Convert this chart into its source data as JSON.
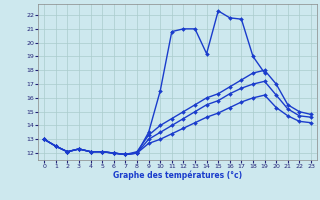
{
  "title": "Graphe des températures (°c)",
  "bg_color": "#cde8ee",
  "grid_color": "#aacccc",
  "line_color": "#1a3ccc",
  "xlim": [
    -0.5,
    23.5
  ],
  "ylim": [
    11.5,
    22.8
  ],
  "yticks": [
    12,
    13,
    14,
    15,
    16,
    17,
    18,
    19,
    20,
    21,
    22
  ],
  "xticks": [
    0,
    1,
    2,
    3,
    4,
    5,
    6,
    7,
    8,
    9,
    10,
    11,
    12,
    13,
    14,
    15,
    16,
    17,
    18,
    19,
    20,
    21,
    22,
    23
  ],
  "lines": [
    {
      "x": [
        0,
        1,
        2,
        3,
        4,
        5,
        6,
        7,
        8,
        9,
        10,
        11,
        12,
        13,
        14,
        15,
        16,
        17,
        18,
        19
      ],
      "y": [
        13.0,
        12.5,
        12.1,
        12.3,
        12.1,
        12.1,
        12.0,
        11.9,
        12.0,
        13.5,
        16.5,
        20.8,
        21.0,
        21.0,
        19.2,
        22.3,
        21.8,
        21.7,
        19.0,
        17.8
      ],
      "marker": "D",
      "markersize": 2.0,
      "linewidth": 1.0
    },
    {
      "x": [
        0,
        1,
        2,
        3,
        4,
        5,
        6,
        7,
        8,
        9,
        10,
        11,
        12,
        13,
        14,
        15,
        16,
        17,
        18,
        19,
        20,
        21,
        22,
        23
      ],
      "y": [
        13.0,
        12.5,
        12.1,
        12.3,
        12.1,
        12.1,
        12.0,
        11.9,
        12.1,
        13.3,
        14.0,
        14.5,
        15.0,
        15.5,
        16.0,
        16.3,
        16.8,
        17.3,
        17.8,
        18.0,
        17.0,
        15.5,
        15.0,
        14.8
      ],
      "marker": "D",
      "markersize": 2.0,
      "linewidth": 1.0
    },
    {
      "x": [
        0,
        1,
        2,
        3,
        4,
        5,
        6,
        7,
        8,
        9,
        10,
        11,
        12,
        13,
        14,
        15,
        16,
        17,
        18,
        19,
        20,
        21,
        22,
        23
      ],
      "y": [
        13.0,
        12.5,
        12.1,
        12.3,
        12.1,
        12.1,
        12.0,
        11.9,
        12.0,
        13.0,
        13.5,
        14.0,
        14.5,
        15.0,
        15.5,
        15.8,
        16.3,
        16.7,
        17.0,
        17.2,
        16.2,
        15.2,
        14.7,
        14.6
      ],
      "marker": "D",
      "markersize": 2.0,
      "linewidth": 1.0
    },
    {
      "x": [
        0,
        1,
        2,
        3,
        4,
        5,
        6,
        7,
        8,
        9,
        10,
        11,
        12,
        13,
        14,
        15,
        16,
        17,
        18,
        19,
        20,
        21,
        22,
        23
      ],
      "y": [
        13.0,
        12.5,
        12.1,
        12.3,
        12.1,
        12.1,
        12.0,
        11.9,
        12.0,
        12.7,
        13.0,
        13.4,
        13.8,
        14.2,
        14.6,
        14.9,
        15.3,
        15.7,
        16.0,
        16.2,
        15.3,
        14.7,
        14.3,
        14.2
      ],
      "marker": "D",
      "markersize": 2.0,
      "linewidth": 1.0
    }
  ]
}
